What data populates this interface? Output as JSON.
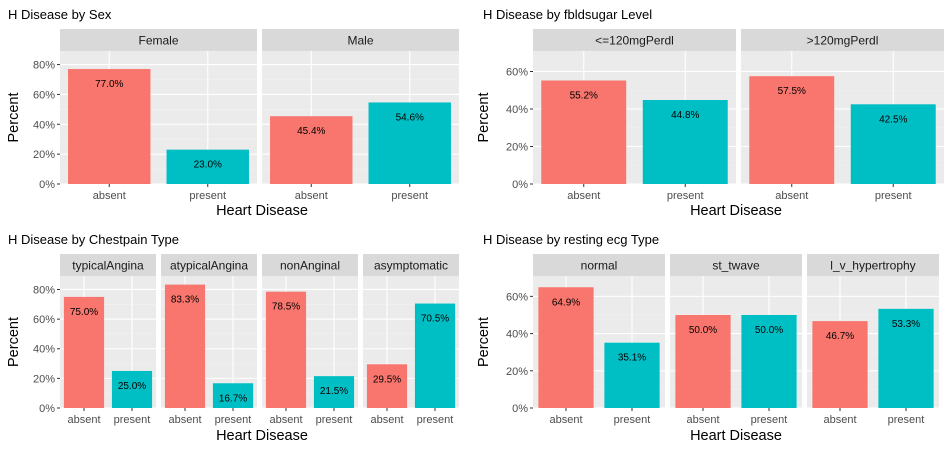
{
  "chart_data": [
    {
      "type": "bar",
      "title": "H Disease by Sex",
      "xlabel": "Heart Disease",
      "ylabel": "Percent",
      "ylim": [
        0,
        80
      ],
      "yticks": [
        "0%",
        "20%",
        "40%",
        "60%",
        "80%"
      ],
      "categories": [
        "absent",
        "present"
      ],
      "facets": [
        {
          "label": "Female",
          "values": [
            77.0,
            23.0
          ],
          "value_labels": [
            "77.0%",
            "23.0%"
          ]
        },
        {
          "label": "Male",
          "values": [
            45.4,
            54.6
          ],
          "value_labels": [
            "45.4%",
            "54.6%"
          ]
        }
      ]
    },
    {
      "type": "bar",
      "title": "H Disease by fbldsugar Level",
      "xlabel": "Heart Disease",
      "ylabel": "Percent",
      "ylim": [
        0,
        60
      ],
      "yticks": [
        "0%",
        "20%",
        "40%",
        "60%"
      ],
      "categories": [
        "absent",
        "present"
      ],
      "facets": [
        {
          "label": "<=120mgPerdl",
          "values": [
            55.2,
            44.8
          ],
          "value_labels": [
            "55.2%",
            "44.8%"
          ]
        },
        {
          "label": ">120mgPerdl",
          "values": [
            57.5,
            42.5
          ],
          "value_labels": [
            "57.5%",
            "42.5%"
          ]
        }
      ]
    },
    {
      "type": "bar",
      "title": "H Disease by Chestpain Type",
      "xlabel": "Heart Disease",
      "ylabel": "Percent",
      "ylim": [
        0,
        80
      ],
      "yticks": [
        "0%",
        "20%",
        "40%",
        "60%",
        "80%"
      ],
      "categories": [
        "absent",
        "present"
      ],
      "facets": [
        {
          "label": "typicalAngina",
          "values": [
            75.0,
            25.0
          ],
          "value_labels": [
            "75.0%",
            "25.0%"
          ]
        },
        {
          "label": "atypicalAngina",
          "values": [
            83.3,
            16.7
          ],
          "value_labels": [
            "83.3%",
            "16.7%"
          ]
        },
        {
          "label": "nonAnginal",
          "values": [
            78.5,
            21.5
          ],
          "value_labels": [
            "78.5%",
            "21.5%"
          ]
        },
        {
          "label": "asymptomatic",
          "values": [
            29.5,
            70.5
          ],
          "value_labels": [
            "29.5%",
            "70.5%"
          ]
        }
      ]
    },
    {
      "type": "bar",
      "title": "H Disease by resting ecg Type",
      "xlabel": "Heart Disease",
      "ylabel": "Percent",
      "ylim": [
        0,
        60
      ],
      "yticks": [
        "0%",
        "20%",
        "40%",
        "60%"
      ],
      "categories": [
        "absent",
        "present"
      ],
      "facets": [
        {
          "label": "normal",
          "values": [
            64.9,
            35.1
          ],
          "value_labels": [
            "64.9%",
            "35.1%"
          ]
        },
        {
          "label": "st_twave",
          "values": [
            50.0,
            50.0
          ],
          "value_labels": [
            "50.0%",
            "50.0%"
          ]
        },
        {
          "label": "l_v_hypertrophy",
          "values": [
            46.7,
            53.3
          ],
          "value_labels": [
            "46.7%",
            "53.3%"
          ]
        }
      ]
    }
  ],
  "colors": {
    "absent": "#F8766D",
    "present": "#00BFC4",
    "panel_background": "#EBEBEB",
    "strip_background": "#D9D9D9",
    "grid_major": "#FFFFFF",
    "grid_minor": "#F2F2F2"
  }
}
